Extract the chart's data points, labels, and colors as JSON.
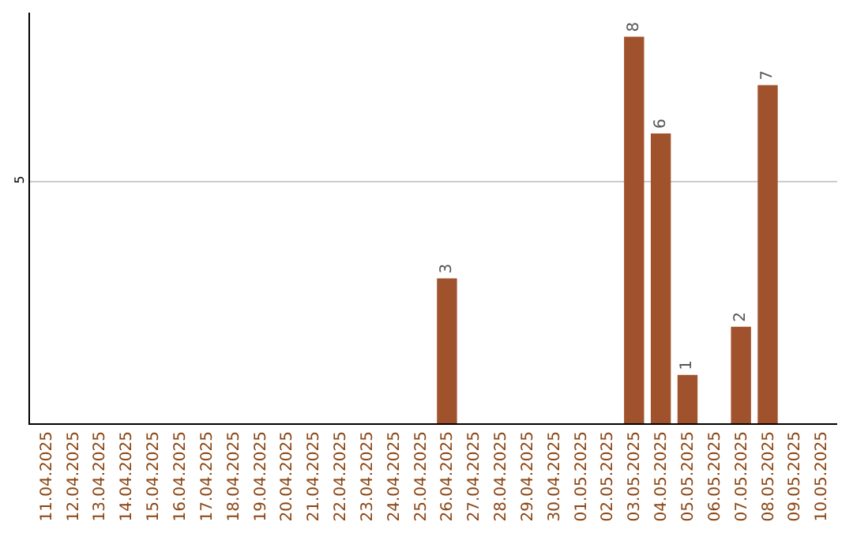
{
  "chart_data": {
    "type": "bar",
    "categories": [
      "11.04.2025",
      "12.04.2025",
      "13.04.2025",
      "14.04.2025",
      "15.04.2025",
      "16.04.2025",
      "17.04.2025",
      "18.04.2025",
      "19.04.2025",
      "20.04.2025",
      "21.04.2025",
      "22.04.2025",
      "23.04.2025",
      "24.04.2025",
      "25.04.2025",
      "26.04.2025",
      "27.04.2025",
      "28.04.2025",
      "29.04.2025",
      "30.04.2025",
      "01.05.2025",
      "02.05.2025",
      "03.05.2025",
      "04.05.2025",
      "05.05.2025",
      "06.05.2025",
      "07.05.2025",
      "08.05.2025",
      "09.05.2025",
      "10.05.2025"
    ],
    "values": [
      null,
      null,
      null,
      null,
      null,
      null,
      null,
      null,
      null,
      null,
      null,
      null,
      null,
      null,
      null,
      3,
      null,
      null,
      null,
      null,
      null,
      null,
      8,
      6,
      1,
      null,
      2,
      7,
      null,
      null
    ],
    "data_labels": true,
    "color": "#a0522d",
    "ylim": [
      0,
      8.5
    ],
    "yticks": [
      5
    ],
    "grid": "y",
    "legend": false
  }
}
